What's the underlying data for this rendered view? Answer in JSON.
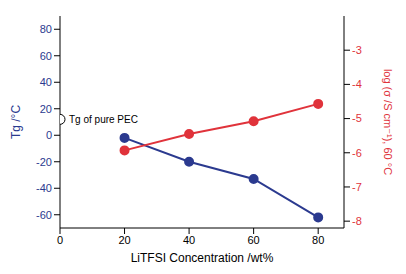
{
  "chart_data": {
    "type": "line",
    "x": [
      20,
      40,
      60,
      80
    ],
    "xlabel": "LiTFSI Concentration /wt%",
    "xlim": [
      0,
      88
    ],
    "xticks": [
      0,
      20,
      40,
      60,
      80
    ],
    "ylabel": "Tg /°C",
    "ylim": [
      -70,
      90
    ],
    "yticks": [
      -60,
      -40,
      -20,
      0,
      20,
      40,
      60,
      80
    ],
    "y2label": "log (σ /S cm⁻¹), 60 °C",
    "y2lim": [
      -8.2,
      -2
    ],
    "y2ticks": [
      -8,
      -7,
      -6,
      -5,
      -4,
      -3
    ],
    "grid": false,
    "series": [
      {
        "color": "#2b3a8f",
        "marker": "circle",
        "values": [
          -2,
          -20,
          -33,
          -62
        ]
      },
      {
        "color": "#e0333b",
        "marker": "circle",
        "axis": "y2",
        "values": [
          -5.93,
          -5.45,
          -5.08,
          -4.57
        ]
      }
    ],
    "annotations": [
      {
        "text": "Tg of pure PEC",
        "x": 0,
        "y": 12,
        "marker": "open_circle"
      }
    ]
  }
}
